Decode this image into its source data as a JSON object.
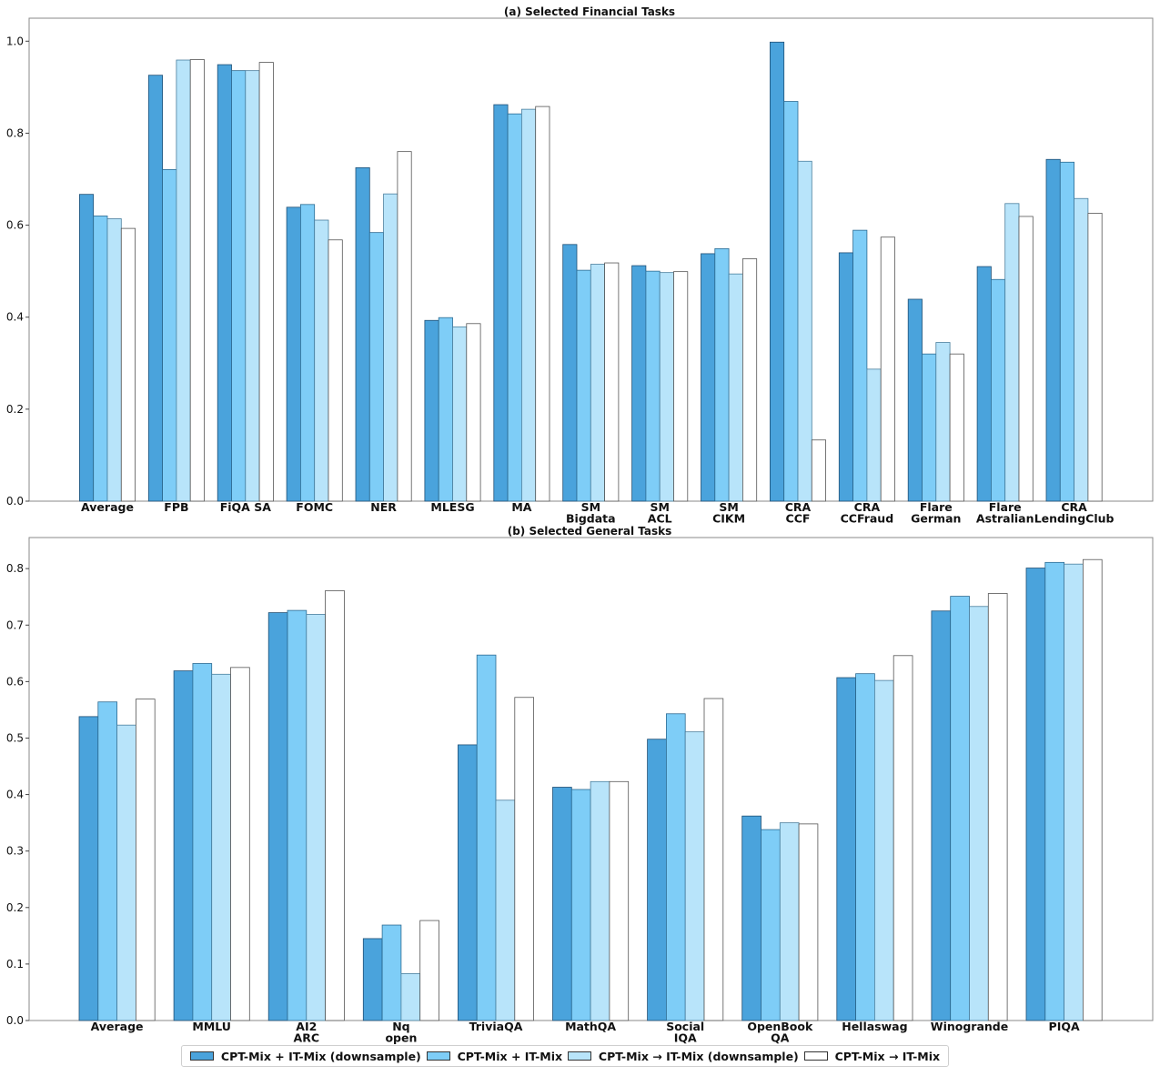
{
  "colors": [
    "#4aa3dc",
    "#7ecdf7",
    "#b8e4fa",
    "#ffffff"
  ],
  "legend": [
    {
      "label": "CPT-Mix + IT-Mix (downsample)",
      "color": "#4aa3dc"
    },
    {
      "label": "CPT-Mix + IT-Mix",
      "color": "#7ecdf7"
    },
    {
      "label": "CPT-Mix → IT-Mix (downsample)",
      "color": "#b8e4fa"
    },
    {
      "label": "CPT-Mix → IT-Mix",
      "color": "#ffffff"
    }
  ],
  "chart_data": [
    {
      "type": "bar",
      "title": "(a) Selected Financial Tasks",
      "categories": [
        [
          "Average"
        ],
        [
          "FPB"
        ],
        [
          "FiQA SA"
        ],
        [
          "FOMC"
        ],
        [
          "NER"
        ],
        [
          "MLESG"
        ],
        [
          "MA"
        ],
        [
          "SM",
          "Bigdata"
        ],
        [
          "SM",
          "ACL"
        ],
        [
          "SM",
          "CIKM"
        ],
        [
          "CRA",
          "CCF"
        ],
        [
          "CRA",
          "CCFraud"
        ],
        [
          "Flare",
          "German"
        ],
        [
          "Flare",
          "Astralian"
        ],
        [
          "CRA",
          "LendingClub"
        ]
      ],
      "ylim": [
        0,
        1.05
      ],
      "yticks": [
        "0.0",
        "0.2",
        "0.4",
        "0.6",
        "0.8",
        "1.0"
      ],
      "series": [
        {
          "name": "CPT-Mix + IT-Mix (downsample)",
          "values": [
            0.667,
            0.926,
            0.949,
            0.639,
            0.725,
            0.393,
            0.862,
            0.558,
            0.512,
            0.538,
            0.998,
            0.54,
            0.439,
            0.51,
            0.743
          ]
        },
        {
          "name": "CPT-Mix + IT-Mix",
          "values": [
            0.62,
            0.721,
            0.936,
            0.645,
            0.584,
            0.399,
            0.842,
            0.502,
            0.5,
            0.549,
            0.869,
            0.589,
            0.32,
            0.482,
            0.737
          ]
        },
        {
          "name": "CPT-Mix → IT-Mix (downsample)",
          "values": [
            0.614,
            0.959,
            0.936,
            0.611,
            0.668,
            0.379,
            0.852,
            0.515,
            0.497,
            0.494,
            0.739,
            0.287,
            0.345,
            0.647,
            0.658
          ]
        },
        {
          "name": "CPT-Mix → IT-Mix",
          "values": [
            0.593,
            0.96,
            0.954,
            0.568,
            0.76,
            0.386,
            0.858,
            0.518,
            0.499,
            0.527,
            0.133,
            0.574,
            0.32,
            0.619,
            0.626
          ]
        }
      ]
    },
    {
      "type": "bar",
      "title": "(b) Selected General Tasks",
      "categories": [
        [
          "Average"
        ],
        [
          "MMLU"
        ],
        [
          "AI2",
          "ARC"
        ],
        [
          "Nq",
          "open"
        ],
        [
          "TriviaQA"
        ],
        [
          "MathQA"
        ],
        [
          "Social",
          "IQA"
        ],
        [
          "OpenBook",
          "QA"
        ],
        [
          "Hellaswag"
        ],
        [
          "Winogrande"
        ],
        [
          "PIQA"
        ]
      ],
      "ylim": [
        0,
        0.855
      ],
      "yticks": [
        "0.0",
        "0.1",
        "0.2",
        "0.3",
        "0.4",
        "0.5",
        "0.6",
        "0.7",
        "0.8"
      ],
      "series": [
        {
          "name": "CPT-Mix + IT-Mix (downsample)",
          "values": [
            0.538,
            0.619,
            0.722,
            0.145,
            0.488,
            0.413,
            0.498,
            0.362,
            0.607,
            0.725,
            0.801
          ]
        },
        {
          "name": "CPT-Mix + IT-Mix",
          "values": [
            0.564,
            0.632,
            0.726,
            0.169,
            0.647,
            0.409,
            0.543,
            0.338,
            0.614,
            0.751,
            0.811
          ]
        },
        {
          "name": "CPT-Mix → IT-Mix (downsample)",
          "values": [
            0.523,
            0.613,
            0.719,
            0.083,
            0.39,
            0.423,
            0.511,
            0.35,
            0.602,
            0.733,
            0.808
          ]
        },
        {
          "name": "CPT-Mix → IT-Mix",
          "values": [
            0.569,
            0.625,
            0.761,
            0.177,
            0.572,
            0.423,
            0.57,
            0.348,
            0.646,
            0.756,
            0.816
          ]
        }
      ]
    }
  ]
}
